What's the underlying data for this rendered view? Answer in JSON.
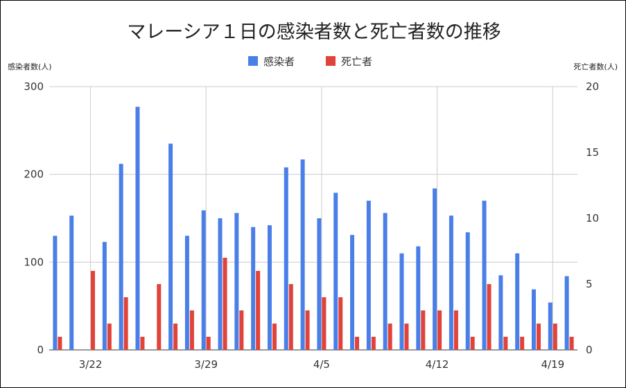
{
  "chart_data": {
    "type": "bar",
    "title": "マレーシア１日の感染者数と死亡者数の推移",
    "y_left_label": "感染者数(人)",
    "y_right_label": "死亡者数(人)",
    "y_left_lim": [
      0,
      300
    ],
    "y_right_lim": [
      0,
      20
    ],
    "y_left_ticks": [
      "0",
      "100",
      "200",
      "300"
    ],
    "y_right_ticks": [
      "0",
      "5",
      "10",
      "15",
      "20"
    ],
    "x_tick_labels": [
      "3/22",
      "3/29",
      "4/5",
      "4/12",
      "4/19"
    ],
    "x_tick_indices": [
      2,
      9,
      16,
      23,
      30
    ],
    "legend_position": "top-center",
    "grid": true,
    "categories": [
      "3/20",
      "3/21",
      "3/22",
      "3/23",
      "3/24",
      "3/25",
      "3/26",
      "3/27",
      "3/28",
      "3/29",
      "3/30",
      "3/31",
      "4/1",
      "4/2",
      "4/3",
      "4/4",
      "4/5",
      "4/6",
      "4/7",
      "4/8",
      "4/9",
      "4/10",
      "4/11",
      "4/12",
      "4/13",
      "4/14",
      "4/15",
      "4/16",
      "4/17",
      "4/18",
      "4/19",
      "4/20"
    ],
    "series": [
      {
        "name": "感染者",
        "axis": "left",
        "color": "#4a7fe8",
        "values": [
          130,
          153,
          null,
          123,
          212,
          277,
          null,
          235,
          130,
          159,
          150,
          156,
          140,
          142,
          208,
          217,
          150,
          179,
          131,
          170,
          156,
          110,
          118,
          184,
          153,
          134,
          170,
          85,
          110,
          69,
          54,
          84
        ]
      },
      {
        "name": "死亡者",
        "axis": "right",
        "color": "#e0433a",
        "values": [
          1,
          null,
          6,
          2,
          4,
          1,
          5,
          2,
          3,
          1,
          7,
          3,
          6,
          2,
          5,
          3,
          4,
          4,
          1,
          1,
          2,
          2,
          3,
          3,
          3,
          1,
          5,
          1,
          1,
          2,
          2,
          1
        ]
      }
    ]
  }
}
